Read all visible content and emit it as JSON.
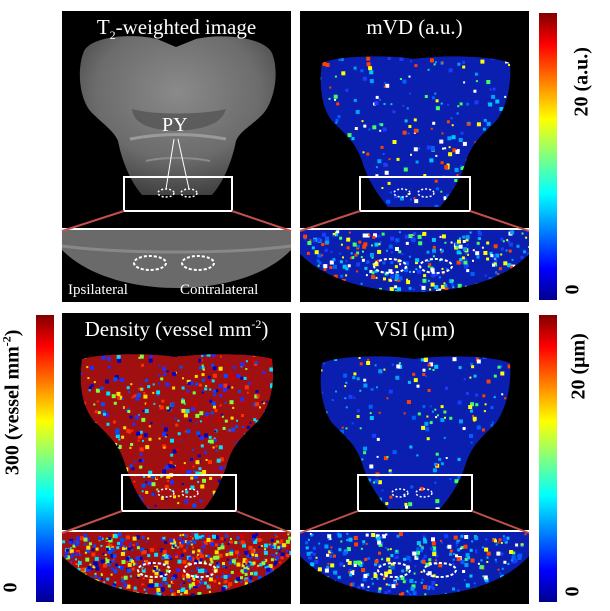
{
  "panels": {
    "t2": {
      "title_pre": "T",
      "title_sub": "2",
      "title_post": "-weighted image",
      "py_label": "PY",
      "ipsilateral": "Ipsilateral",
      "contralateral": "Contralateral"
    },
    "mvd": {
      "title": "mVD (a.u.)"
    },
    "density": {
      "title_pre": "Density (vessel mm",
      "title_sup": "-2",
      "title_post": ")"
    },
    "vsi": {
      "title": "VSI (μm)"
    }
  },
  "colorbars": {
    "mvd": {
      "max_label": "20 (a.u.)",
      "min_label": "0"
    },
    "density": {
      "max_pre": "300 (vessel mm",
      "max_sup": "-2",
      "max_post": ")",
      "min_label": "0"
    },
    "vsi": {
      "max_label": "20 (μm)",
      "min_label": "0"
    }
  },
  "colors": {
    "zoom_line": "#c0504d",
    "box": "#ffffff",
    "roi": "#ffffff"
  },
  "colormap": "jet"
}
